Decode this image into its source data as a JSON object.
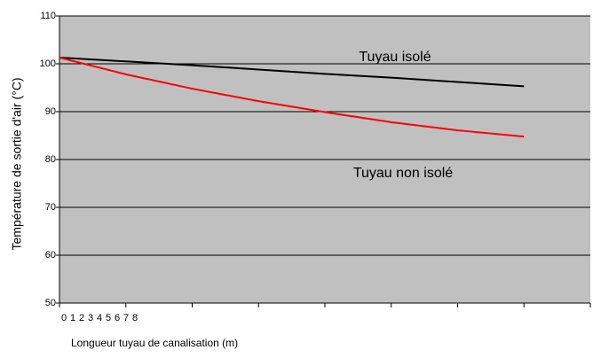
{
  "chart_data": {
    "type": "line",
    "x_label": "Longueur tuyau de canalisation (m)",
    "y_label": "Température de sortie d'air (°C)",
    "x": [
      0,
      1,
      2,
      3,
      4,
      5,
      6,
      7
    ],
    "series": [
      {
        "name": "Tuyau isolé",
        "color": "#000000",
        "values": [
          101.3,
          100.5,
          99.7,
          98.8,
          97.9,
          97.1,
          96.2,
          95.3
        ]
      },
      {
        "name": "Tuyau non isolé",
        "color": "#ff0000",
        "values": [
          101.3,
          97.8,
          94.8,
          92.2,
          89.9,
          87.8,
          86.1,
          84.8
        ]
      }
    ],
    "xlim": [
      0,
      8
    ],
    "xticks": [
      0,
      1,
      2,
      3,
      4,
      5,
      6,
      7,
      8
    ],
    "ylim": [
      50,
      110
    ],
    "yticks": [
      50,
      60,
      70,
      80,
      90,
      100,
      110
    ],
    "grid": true,
    "plot_background": "#c0c0c0"
  }
}
